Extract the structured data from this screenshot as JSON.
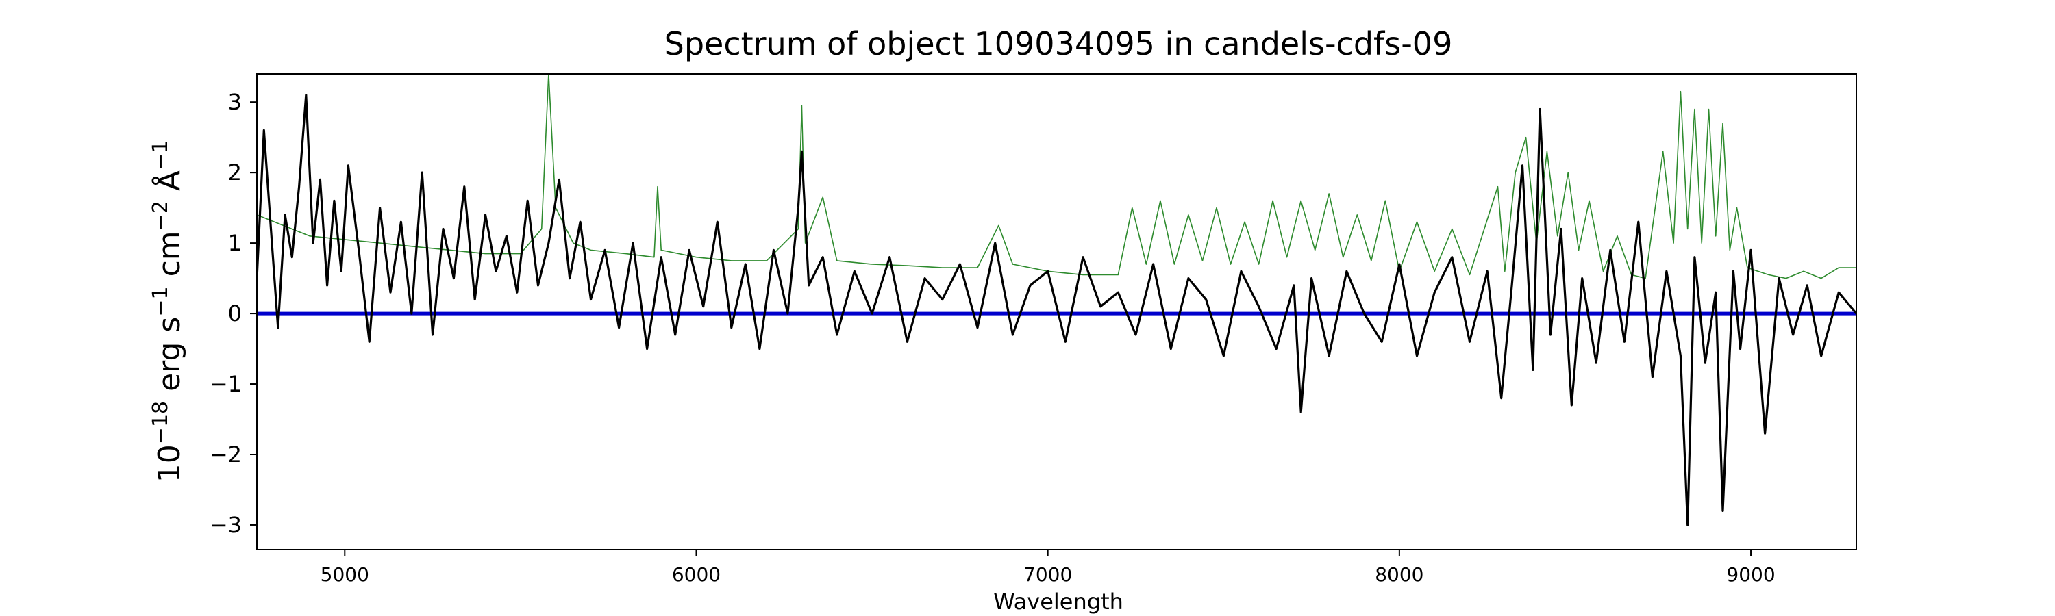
{
  "chart_data": {
    "type": "line",
    "title": "Spectrum of object 109034095 in candels-cdfs-09",
    "xlabel": "Wavelength",
    "ylabel": {
      "base": "10",
      "exp1": "−18",
      "unit1": " erg s",
      "exp2": "−1",
      "unit2": " cm",
      "exp3": "−2",
      "unit3": " Å",
      "exp4": "−1"
    },
    "xlim": [
      4750,
      9300
    ],
    "ylim": [
      -3.35,
      3.4
    ],
    "xticks": [
      5000,
      6000,
      7000,
      8000,
      9000
    ],
    "xtick_labels": [
      "5000",
      "6000",
      "7000",
      "8000",
      "9000"
    ],
    "yticks": [
      -3,
      -2,
      -1,
      0,
      1,
      2,
      3
    ],
    "ytick_labels": [
      "−3",
      "−2",
      "−1",
      "0",
      "1",
      "2",
      "3"
    ],
    "grid": false,
    "colors": {
      "flux": "#000000",
      "error": "#2e8b2e",
      "zero_line": "#0000cc"
    },
    "series": [
      {
        "role": "zero_line",
        "color": "#0000cc",
        "x": [
          4750,
          9300
        ],
        "y": [
          0,
          0
        ]
      },
      {
        "role": "error",
        "color": "#2e8b2e",
        "x": [
          4750,
          4800,
          4850,
          4900,
          5000,
          5100,
          5200,
          5300,
          5400,
          5500,
          5560,
          5580,
          5600,
          5650,
          5700,
          5800,
          5880,
          5890,
          5900,
          6000,
          6100,
          6200,
          6290,
          6300,
          6310,
          6360,
          6400,
          6500,
          6600,
          6700,
          6800,
          6860,
          6900,
          7000,
          7100,
          7200,
          7240,
          7280,
          7320,
          7360,
          7400,
          7440,
          7480,
          7520,
          7560,
          7600,
          7640,
          7680,
          7720,
          7760,
          7800,
          7840,
          7880,
          7920,
          7960,
          8000,
          8050,
          8100,
          8150,
          8200,
          8280,
          8300,
          8330,
          8360,
          8390,
          8420,
          8450,
          8480,
          8510,
          8540,
          8580,
          8620,
          8660,
          8700,
          8750,
          8780,
          8800,
          8820,
          8840,
          8860,
          8880,
          8900,
          8920,
          8940,
          8960,
          8990,
          9050,
          9100,
          9150,
          9200,
          9250,
          9300
        ],
        "y": [
          1.4,
          1.3,
          1.2,
          1.1,
          1.05,
          1.0,
          0.95,
          0.9,
          0.85,
          0.85,
          1.2,
          3.4,
          1.5,
          1.0,
          0.9,
          0.85,
          0.8,
          1.8,
          0.9,
          0.8,
          0.75,
          0.75,
          1.2,
          2.95,
          1.0,
          1.65,
          0.75,
          0.7,
          0.68,
          0.65,
          0.65,
          1.25,
          0.7,
          0.6,
          0.55,
          0.55,
          1.5,
          0.7,
          1.6,
          0.7,
          1.4,
          0.75,
          1.5,
          0.7,
          1.3,
          0.7,
          1.6,
          0.8,
          1.6,
          0.9,
          1.7,
          0.8,
          1.4,
          0.75,
          1.6,
          0.6,
          1.3,
          0.6,
          1.2,
          0.55,
          1.8,
          0.6,
          2.0,
          2.5,
          1.0,
          2.3,
          1.1,
          2.0,
          0.9,
          1.6,
          0.6,
          1.1,
          0.55,
          0.5,
          2.3,
          1.0,
          3.15,
          1.2,
          2.9,
          1.0,
          2.9,
          1.1,
          2.7,
          0.9,
          1.5,
          0.65,
          0.55,
          0.5,
          0.6,
          0.5,
          0.65,
          0.65
        ]
      },
      {
        "role": "flux",
        "color": "#000000",
        "x": [
          4750,
          4770,
          4790,
          4810,
          4830,
          4850,
          4870,
          4890,
          4910,
          4930,
          4950,
          4970,
          4990,
          5010,
          5040,
          5070,
          5100,
          5130,
          5160,
          5190,
          5220,
          5250,
          5280,
          5310,
          5340,
          5370,
          5400,
          5430,
          5460,
          5490,
          5520,
          5550,
          5580,
          5610,
          5640,
          5670,
          5700,
          5740,
          5780,
          5820,
          5860,
          5900,
          5940,
          5980,
          6020,
          6060,
          6100,
          6140,
          6180,
          6220,
          6260,
          6290,
          6300,
          6320,
          6360,
          6400,
          6450,
          6500,
          6550,
          6600,
          6650,
          6700,
          6750,
          6800,
          6850,
          6900,
          6950,
          7000,
          7050,
          7100,
          7150,
          7200,
          7250,
          7300,
          7350,
          7400,
          7450,
          7500,
          7550,
          7600,
          7650,
          7700,
          7720,
          7750,
          7800,
          7850,
          7900,
          7950,
          8000,
          8050,
          8100,
          8150,
          8200,
          8250,
          8290,
          8320,
          8350,
          8380,
          8400,
          8430,
          8460,
          8490,
          8520,
          8560,
          8600,
          8640,
          8680,
          8720,
          8760,
          8800,
          8820,
          8840,
          8870,
          8900,
          8920,
          8950,
          8970,
          9000,
          9040,
          9080,
          9120,
          9160,
          9200,
          9250,
          9300
        ],
        "y": [
          0.5,
          2.6,
          1.2,
          -0.2,
          1.4,
          0.8,
          1.8,
          3.1,
          1.0,
          1.9,
          0.4,
          1.6,
          0.6,
          2.1,
          0.9,
          -0.4,
          1.5,
          0.3,
          1.3,
          0.0,
          2.0,
          -0.3,
          1.2,
          0.5,
          1.8,
          0.2,
          1.4,
          0.6,
          1.1,
          0.3,
          1.6,
          0.4,
          1.0,
          1.9,
          0.5,
          1.3,
          0.2,
          0.9,
          -0.2,
          1.0,
          -0.5,
          0.8,
          -0.3,
          0.9,
          0.1,
          1.3,
          -0.2,
          0.7,
          -0.5,
          0.9,
          0.0,
          1.5,
          2.3,
          0.4,
          0.8,
          -0.3,
          0.6,
          0.0,
          0.8,
          -0.4,
          0.5,
          0.2,
          0.7,
          -0.2,
          1.0,
          -0.3,
          0.4,
          0.6,
          -0.4,
          0.8,
          0.1,
          0.3,
          -0.3,
          0.7,
          -0.5,
          0.5,
          0.2,
          -0.6,
          0.6,
          0.1,
          -0.5,
          0.4,
          -1.4,
          0.5,
          -0.6,
          0.6,
          0.0,
          -0.4,
          0.7,
          -0.6,
          0.3,
          0.8,
          -0.4,
          0.6,
          -1.2,
          0.4,
          2.1,
          -0.8,
          2.9,
          -0.3,
          1.2,
          -1.3,
          0.5,
          -0.7,
          0.9,
          -0.4,
          1.3,
          -0.9,
          0.6,
          -0.6,
          -3.0,
          0.8,
          -0.7,
          0.3,
          -2.8,
          0.6,
          -0.5,
          0.9,
          -1.7,
          0.5,
          -0.3,
          0.4,
          -0.6,
          0.3,
          0.0
        ]
      }
    ]
  }
}
